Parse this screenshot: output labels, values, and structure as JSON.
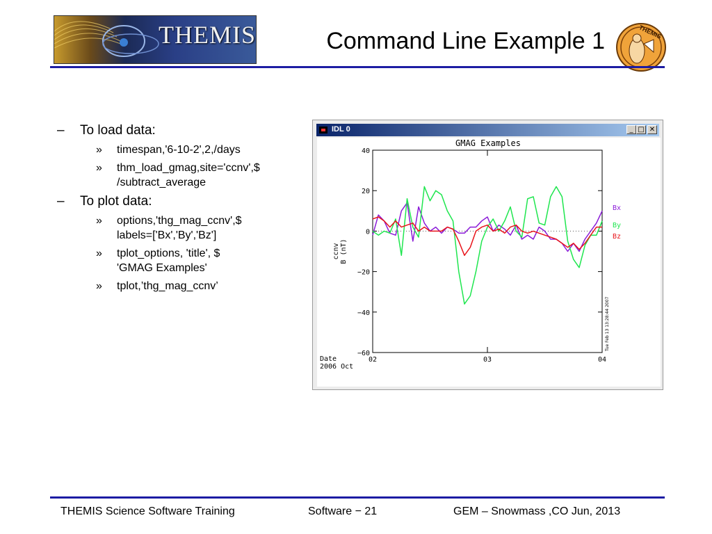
{
  "header": {
    "logo_text": "THEMIS",
    "title": "Command Line Example 1",
    "seal_text": "THEMIS"
  },
  "content": {
    "items": [
      {
        "label": "To load data:",
        "marker": "–",
        "sub": [
          {
            "marker": "»",
            "lines": [
              "timespan,'6-10-2',2,/days"
            ]
          },
          {
            "marker": "»",
            "lines": [
              "thm_load_gmag,site='ccnv',$",
              "/subtract_average"
            ]
          }
        ]
      },
      {
        "label": "To plot data:",
        "marker": "–",
        "sub": [
          {
            "marker": "»",
            "lines": [
              "options,'thg_mag_ccnv',$",
              "labels=['Bx','By','Bz']"
            ]
          },
          {
            "marker": "»",
            "lines": [
              "tplot_options, 'title', $",
              "'GMAG Examples'"
            ]
          },
          {
            "marker": "»",
            "lines": [
              "tplot,’thg_mag_ccnv’"
            ]
          }
        ]
      }
    ]
  },
  "idl_window": {
    "title": "IDL 0",
    "minimize_label": "_",
    "maximize_label": "□",
    "close_label": "✕"
  },
  "chart_data": {
    "type": "line",
    "title": "GMAG Examples",
    "ylabel": "ccnv B (nT)",
    "ylabel_line1": "ccnv",
    "ylabel_line2": "B (nT)",
    "xlabel_line1": "Date",
    "xlabel_line2": "2006 Oct",
    "x_ticks": [
      "02",
      "03",
      "04"
    ],
    "x_range_days": [
      2,
      4
    ],
    "ylim": [
      -60,
      40
    ],
    "y_ticks": [
      40,
      20,
      0,
      -20,
      -40,
      -60
    ],
    "zero_line": "dotted",
    "legend_position": "right",
    "timestamp_text": "Tue Feb 13 13:28:44 2007",
    "series": [
      {
        "name": "Bx",
        "color": "#8b1bd8",
        "x": [
          2.0,
          2.05,
          2.1,
          2.15,
          2.2,
          2.25,
          2.3,
          2.35,
          2.4,
          2.45,
          2.5,
          2.55,
          2.6,
          2.65,
          2.7,
          2.75,
          2.8,
          2.85,
          2.9,
          2.95,
          3.0,
          3.05,
          3.1,
          3.15,
          3.2,
          3.25,
          3.3,
          3.35,
          3.4,
          3.45,
          3.5,
          3.55,
          3.6,
          3.65,
          3.7,
          3.75,
          3.8,
          3.85,
          3.9,
          3.95,
          4.0
        ],
        "values": [
          -2,
          8,
          5,
          -1,
          -2,
          10,
          14,
          -5,
          12,
          4,
          0,
          2,
          -1,
          2,
          1,
          -1,
          -1,
          2,
          2,
          5,
          7,
          0,
          3,
          1,
          -2,
          3,
          -4,
          -2,
          -4,
          2,
          0,
          -4,
          -4,
          -6,
          -10,
          -6,
          -10,
          -4,
          0,
          4,
          10
        ]
      },
      {
        "name": "By",
        "color": "#1ee64e",
        "x": [
          2.0,
          2.05,
          2.1,
          2.15,
          2.2,
          2.25,
          2.3,
          2.35,
          2.4,
          2.45,
          2.5,
          2.55,
          2.6,
          2.65,
          2.7,
          2.75,
          2.8,
          2.85,
          2.9,
          2.95,
          3.0,
          3.05,
          3.1,
          3.15,
          3.2,
          3.25,
          3.3,
          3.35,
          3.4,
          3.45,
          3.5,
          3.55,
          3.6,
          3.65,
          3.7,
          3.75,
          3.8,
          3.85,
          3.9,
          3.95,
          4.0
        ],
        "values": [
          0,
          -2,
          0,
          -1,
          6,
          -12,
          16,
          2,
          -3,
          22,
          15,
          20,
          18,
          10,
          5,
          -20,
          -36,
          -32,
          -20,
          -5,
          2,
          6,
          0,
          5,
          12,
          0,
          -3,
          16,
          17,
          4,
          3,
          17,
          22,
          17,
          -5,
          -14,
          -18,
          -7,
          -2,
          -2,
          5
        ]
      },
      {
        "name": "Bz",
        "color": "#e8141a",
        "x": [
          2.0,
          2.05,
          2.1,
          2.15,
          2.2,
          2.25,
          2.3,
          2.35,
          2.4,
          2.45,
          2.5,
          2.55,
          2.6,
          2.65,
          2.7,
          2.75,
          2.8,
          2.85,
          2.9,
          2.95,
          3.0,
          3.05,
          3.1,
          3.15,
          3.2,
          3.25,
          3.3,
          3.35,
          3.4,
          3.45,
          3.5,
          3.55,
          3.6,
          3.65,
          3.7,
          3.75,
          3.8,
          3.85,
          3.9,
          3.95,
          4.0
        ],
        "values": [
          6,
          7,
          5,
          2,
          5,
          2,
          3,
          4,
          0,
          2,
          0,
          0,
          0,
          2,
          1,
          -5,
          -12,
          -8,
          0,
          2,
          3,
          0,
          1,
          -1,
          2,
          3,
          0,
          -1,
          0,
          -1,
          -2,
          -3,
          -4,
          -6,
          -8,
          -6,
          -9,
          -6,
          -2,
          2,
          2
        ]
      }
    ]
  },
  "footer": {
    "left": "THEMIS Science Software Training",
    "center": "Software − 21",
    "right": "GEM – Snowmass ,CO  Jun, 2013"
  }
}
